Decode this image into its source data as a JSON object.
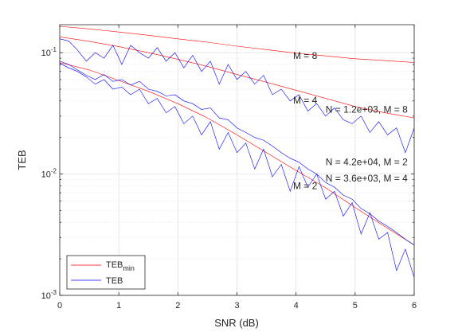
{
  "chart_data": {
    "type": "line",
    "xlabel": "SNR (dB)",
    "ylabel": "TEB",
    "xlim": [
      0,
      6
    ],
    "ylim": [
      0.001,
      0.17
    ],
    "yscale": "log",
    "grid": "on (major and minor)",
    "xticks": [
      0,
      1,
      2,
      3,
      4,
      5,
      6
    ],
    "xtick_labels": [
      "0",
      "1",
      "2",
      "3",
      "4",
      "5",
      "6"
    ],
    "yticks": [
      {
        "value": 0.001,
        "base": "10",
        "exp": "-3"
      },
      {
        "value": 0.01,
        "base": "10",
        "exp": "-2"
      },
      {
        "value": 0.1,
        "base": "10",
        "exp": "-1"
      }
    ],
    "legend": {
      "placement": "bottom-left",
      "entries": [
        {
          "text": "TEB",
          "sub": "min",
          "color": "#ff0000"
        },
        {
          "text": "TEB",
          "sub": "",
          "color": "#0000ff"
        }
      ]
    },
    "annotations": [
      {
        "text": "M = 8",
        "x": 3.95,
        "y": 0.089
      },
      {
        "text": "M = 4",
        "x": 3.95,
        "y": 0.038
      },
      {
        "text": "M = 2",
        "x": 3.95,
        "y": 0.0075
      },
      {
        "text": "N = 1.2e+03, M = 8",
        "x": 4.5,
        "y": 0.032
      },
      {
        "text": "N = 4.2e+04, M = 2",
        "x": 4.5,
        "y": 0.0118
      },
      {
        "text": "N = 3.6e+03, M = 4",
        "x": 4.5,
        "y": 0.0087
      }
    ],
    "series": [
      {
        "color": "#ff0000",
        "x": [
          0,
          0.5,
          1,
          1.5,
          2,
          2.5,
          3,
          3.5,
          4,
          4.5,
          5,
          5.5,
          6
        ],
        "values": [
          0.165,
          0.157,
          0.148,
          0.139,
          0.13,
          0.122,
          0.113,
          0.106,
          0.099,
          0.094,
          0.089,
          0.086,
          0.083
        ]
      },
      {
        "color": "#ff0000",
        "x": [
          0,
          0.5,
          1,
          1.5,
          2,
          2.5,
          3,
          3.5,
          4,
          4.5,
          5,
          5.5,
          6
        ],
        "values": [
          0.135,
          0.124,
          0.112,
          0.1,
          0.088,
          0.077,
          0.066,
          0.057,
          0.049,
          0.042,
          0.036,
          0.032,
          0.029
        ]
      },
      {
        "color": "#ff0000",
        "x": [
          0,
          0.5,
          1,
          1.5,
          2,
          2.5,
          3,
          3.5,
          4,
          4.5,
          5,
          5.5,
          6
        ],
        "values": [
          0.083,
          0.072,
          0.059,
          0.048,
          0.038,
          0.029,
          0.021,
          0.015,
          0.0107,
          0.0077,
          0.0053,
          0.0037,
          0.0026
        ]
      },
      {
        "color": "#0000ff",
        "x": [
          0,
          0.15,
          0.3,
          0.45,
          0.6,
          0.75,
          0.9,
          1.05,
          1.2,
          1.35,
          1.5,
          1.65,
          1.8,
          1.95,
          2.1,
          2.25,
          2.4,
          2.55,
          2.7,
          2.85,
          3.0,
          3.15,
          3.3,
          3.45,
          3.6,
          3.75,
          3.9,
          4.05,
          4.2,
          4.35,
          4.5,
          4.65,
          4.8,
          4.95,
          5.1,
          5.25,
          5.4,
          5.55,
          5.7,
          5.85,
          6.0
        ],
        "values": [
          0.13,
          0.125,
          0.105,
          0.085,
          0.1,
          0.09,
          0.115,
          0.08,
          0.115,
          0.1,
          0.09,
          0.11,
          0.085,
          0.1,
          0.075,
          0.095,
          0.07,
          0.085,
          0.055,
          0.08,
          0.06,
          0.07,
          0.055,
          0.065,
          0.045,
          0.05,
          0.04,
          0.045,
          0.033,
          0.038,
          0.03,
          0.035,
          0.028,
          0.026,
          0.03,
          0.022,
          0.027,
          0.021,
          0.024,
          0.015,
          0.024
        ]
      },
      {
        "color": "#0000ff",
        "x": [
          0,
          0.15,
          0.3,
          0.45,
          0.6,
          0.75,
          0.9,
          1.05,
          1.2,
          1.35,
          1.5,
          1.65,
          1.8,
          1.95,
          2.1,
          2.25,
          2.4,
          2.55,
          2.7,
          2.85,
          3.0,
          3.15,
          3.3,
          3.45,
          3.6,
          3.75,
          3.9,
          4.05,
          4.2,
          4.35,
          4.5,
          4.65,
          4.8,
          4.95,
          5.1,
          5.25,
          5.4,
          5.55,
          5.7,
          5.85,
          6.0
        ],
        "values": [
          0.085,
          0.08,
          0.072,
          0.065,
          0.06,
          0.066,
          0.058,
          0.06,
          0.054,
          0.058,
          0.05,
          0.048,
          0.044,
          0.045,
          0.04,
          0.038,
          0.034,
          0.035,
          0.029,
          0.028,
          0.024,
          0.022,
          0.02,
          0.019,
          0.017,
          0.015,
          0.0135,
          0.0125,
          0.011,
          0.01,
          0.0085,
          0.0078,
          0.0067,
          0.0062,
          0.0052,
          0.0047,
          0.0041,
          0.0037,
          0.0033,
          0.0029,
          0.0026
        ]
      },
      {
        "color": "#0000ff",
        "x": [
          0,
          0.15,
          0.3,
          0.45,
          0.6,
          0.75,
          0.9,
          1.05,
          1.2,
          1.35,
          1.5,
          1.65,
          1.8,
          1.95,
          2.1,
          2.25,
          2.4,
          2.55,
          2.7,
          2.85,
          3.0,
          3.15,
          3.3,
          3.45,
          3.6,
          3.75,
          3.9,
          4.05,
          4.2,
          4.35,
          4.5,
          4.65,
          4.8,
          4.95,
          5.1,
          5.25,
          5.4,
          5.55,
          5.7,
          5.85,
          6.0
        ],
        "values": [
          0.082,
          0.075,
          0.07,
          0.063,
          0.055,
          0.06,
          0.05,
          0.052,
          0.045,
          0.05,
          0.038,
          0.042,
          0.032,
          0.036,
          0.026,
          0.03,
          0.021,
          0.027,
          0.016,
          0.022,
          0.015,
          0.018,
          0.011,
          0.016,
          0.0095,
          0.012,
          0.0072,
          0.0115,
          0.0078,
          0.01,
          0.0062,
          0.0072,
          0.0045,
          0.0058,
          0.0032,
          0.0048,
          0.0029,
          0.0033,
          0.0016,
          0.0024,
          0.0014
        ]
      }
    ]
  }
}
